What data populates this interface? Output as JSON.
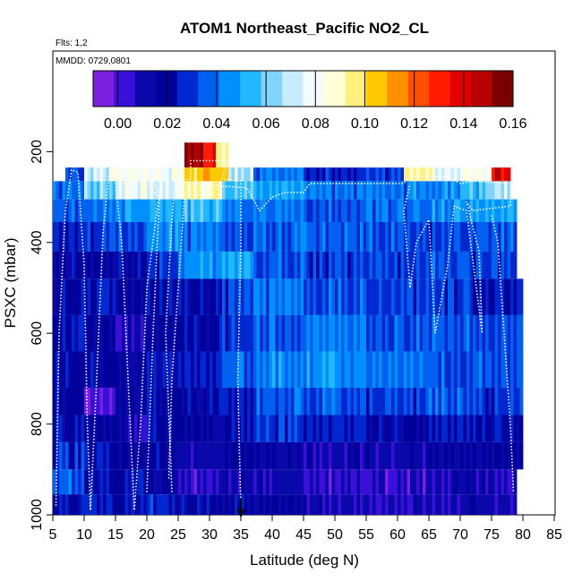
{
  "chart_data": {
    "type": "heatmap",
    "title": "ATOM1 Northeast_Pacific NO2_CL",
    "flights_label": "Flts: 1,2",
    "date_label": "MMDD: 0729,0801",
    "xlabel": "Latitude (deg N)",
    "ylabel": "PSXC (mbar)",
    "xlim": [
      5,
      85
    ],
    "ylim": [
      1000,
      0
    ],
    "x_ticks": [
      "5",
      "10",
      "15",
      "20",
      "25",
      "30",
      "35",
      "40",
      "45",
      "50",
      "55",
      "60",
      "65",
      "70",
      "75",
      "80",
      "85"
    ],
    "y_ticks": [
      "200",
      "400",
      "600",
      "800",
      "1000"
    ],
    "colorbar": {
      "range": [
        -0.01,
        0.16
      ],
      "ticks": [
        "0.00",
        "0.02",
        "0.04",
        "0.06",
        "0.08",
        "0.10",
        "0.12",
        "0.14",
        "0.16"
      ],
      "colors": [
        "#7b1fe0",
        "#3a0fd8",
        "#0a08a8",
        "#00009a",
        "#0028d0",
        "#0060f0",
        "#0090ff",
        "#22b8ff",
        "#80d4ff",
        "#c8ecff",
        "#f4fbff",
        "#ffffd8",
        "#fff080",
        "#ffc800",
        "#ff9000",
        "#ff5000",
        "#ff1c00",
        "#e00000",
        "#b80000",
        "#7a0000"
      ]
    },
    "marker": {
      "label": "arrow",
      "latitude": 35
    },
    "layers": [
      {
        "p": [
          180,
          235
        ],
        "values": [
          [
            26,
            29,
            0.15
          ],
          [
            29,
            31,
            0.13
          ],
          [
            31,
            33,
            0.09
          ]
        ]
      },
      {
        "p": [
          235,
          265
        ],
        "values": [
          [
            7,
            10,
            0.03
          ],
          [
            10,
            14,
            0.07
          ],
          [
            14,
            20,
            0.085
          ],
          [
            20,
            26,
            0.08
          ],
          [
            26,
            33,
            0.105
          ],
          [
            33,
            37,
            0.07
          ],
          [
            37,
            45,
            0.04
          ],
          [
            45,
            55,
            0.025
          ],
          [
            55,
            61,
            0.03
          ],
          [
            61,
            66,
            0.09
          ],
          [
            66,
            70,
            0.075
          ],
          [
            70,
            75,
            0.085
          ],
          [
            75,
            78,
            0.14
          ]
        ]
      },
      {
        "p": [
          265,
          305
        ],
        "values": [
          [
            5,
            10,
            0.04
          ],
          [
            10,
            15,
            0.06
          ],
          [
            15,
            20,
            0.08
          ],
          [
            20,
            25,
            0.075
          ],
          [
            25,
            32,
            0.09
          ],
          [
            32,
            37,
            0.055
          ],
          [
            37,
            45,
            0.05
          ],
          [
            45,
            55,
            0.04
          ],
          [
            55,
            62,
            0.04
          ],
          [
            62,
            70,
            0.045
          ],
          [
            70,
            75,
            0.055
          ],
          [
            75,
            78,
            0.07
          ]
        ]
      },
      {
        "p": [
          305,
          355
        ],
        "values": [
          [
            5,
            10,
            0.035
          ],
          [
            10,
            15,
            0.04
          ],
          [
            15,
            20,
            0.045
          ],
          [
            20,
            25,
            0.05
          ],
          [
            25,
            32,
            0.055
          ],
          [
            32,
            37,
            0.04
          ],
          [
            37,
            45,
            0.04
          ],
          [
            45,
            55,
            0.035
          ],
          [
            55,
            65,
            0.04
          ],
          [
            65,
            72,
            0.045
          ],
          [
            72,
            79,
            0.05
          ]
        ]
      },
      {
        "p": [
          355,
          420
        ],
        "values": [
          [
            5,
            10,
            0.025
          ],
          [
            10,
            15,
            0.03
          ],
          [
            15,
            20,
            0.035
          ],
          [
            20,
            25,
            0.045
          ],
          [
            25,
            32,
            0.04
          ],
          [
            32,
            37,
            0.035
          ],
          [
            37,
            45,
            0.035
          ],
          [
            45,
            55,
            0.035
          ],
          [
            55,
            65,
            0.035
          ],
          [
            65,
            72,
            0.03
          ],
          [
            72,
            79,
            0.035
          ]
        ]
      },
      {
        "p": [
          420,
          480
        ],
        "values": [
          [
            5,
            10,
            0.02
          ],
          [
            10,
            15,
            0.015
          ],
          [
            15,
            20,
            0.02
          ],
          [
            20,
            25,
            0.03
          ],
          [
            25,
            32,
            0.045
          ],
          [
            32,
            37,
            0.05
          ],
          [
            37,
            45,
            0.035
          ],
          [
            45,
            55,
            0.03
          ],
          [
            55,
            65,
            0.03
          ],
          [
            65,
            72,
            0.035
          ],
          [
            72,
            79,
            0.03
          ]
        ]
      },
      {
        "p": [
          480,
          560
        ],
        "values": [
          [
            5,
            10,
            0.02
          ],
          [
            10,
            15,
            0.025
          ],
          [
            15,
            20,
            0.015
          ],
          [
            20,
            25,
            0.02
          ],
          [
            25,
            32,
            0.02
          ],
          [
            32,
            37,
            0.03
          ],
          [
            37,
            45,
            0.04
          ],
          [
            45,
            55,
            0.035
          ],
          [
            55,
            65,
            0.03
          ],
          [
            65,
            72,
            0.03
          ],
          [
            72,
            80,
            0.025
          ]
        ]
      },
      {
        "p": [
          560,
          640
        ],
        "values": [
          [
            5,
            10,
            0.02
          ],
          [
            10,
            15,
            0.015
          ],
          [
            15,
            20,
            0.01
          ],
          [
            20,
            25,
            0.015
          ],
          [
            25,
            32,
            0.02
          ],
          [
            32,
            37,
            0.03
          ],
          [
            37,
            45,
            0.035
          ],
          [
            45,
            55,
            0.04
          ],
          [
            55,
            65,
            0.035
          ],
          [
            65,
            72,
            0.035
          ],
          [
            72,
            80,
            0.03
          ]
        ]
      },
      {
        "p": [
          640,
          720
        ],
        "values": [
          [
            5,
            10,
            0.02
          ],
          [
            10,
            15,
            0.02
          ],
          [
            15,
            20,
            0.015
          ],
          [
            20,
            25,
            0.02
          ],
          [
            25,
            32,
            0.025
          ],
          [
            32,
            37,
            0.035
          ],
          [
            37,
            45,
            0.045
          ],
          [
            45,
            55,
            0.045
          ],
          [
            55,
            65,
            0.04
          ],
          [
            65,
            72,
            0.035
          ],
          [
            72,
            80,
            0.035
          ]
        ]
      },
      {
        "p": [
          720,
          780
        ],
        "values": [
          [
            5,
            10,
            0.02
          ],
          [
            10,
            15,
            0.0
          ],
          [
            15,
            20,
            0.015
          ],
          [
            20,
            25,
            0.02
          ],
          [
            25,
            32,
            0.02
          ],
          [
            32,
            37,
            0.025
          ],
          [
            37,
            45,
            0.035
          ],
          [
            45,
            55,
            0.035
          ],
          [
            55,
            65,
            0.03
          ],
          [
            65,
            72,
            0.035
          ],
          [
            72,
            80,
            0.03
          ]
        ]
      },
      {
        "p": [
          780,
          840
        ],
        "values": [
          [
            5,
            10,
            0.02
          ],
          [
            10,
            15,
            0.015
          ],
          [
            15,
            20,
            0.01
          ],
          [
            20,
            25,
            0.02
          ],
          [
            25,
            32,
            0.015
          ],
          [
            32,
            37,
            0.02
          ],
          [
            37,
            45,
            0.03
          ],
          [
            45,
            55,
            0.025
          ],
          [
            55,
            65,
            0.02
          ],
          [
            65,
            72,
            0.025
          ],
          [
            72,
            80,
            0.02
          ]
        ]
      },
      {
        "p": [
          840,
          900
        ],
        "values": [
          [
            5,
            10,
            0.03
          ],
          [
            10,
            15,
            0.02
          ],
          [
            15,
            20,
            0.015
          ],
          [
            20,
            25,
            0.02
          ],
          [
            25,
            32,
            0.01
          ],
          [
            32,
            37,
            0.015
          ],
          [
            37,
            45,
            0.015
          ],
          [
            45,
            55,
            0.01
          ],
          [
            55,
            65,
            0.01
          ],
          [
            65,
            72,
            0.015
          ],
          [
            72,
            80,
            0.015
          ]
        ]
      },
      {
        "p": [
          900,
          955
        ],
        "values": [
          [
            5,
            10,
            0.035
          ],
          [
            10,
            15,
            0.02
          ],
          [
            15,
            20,
            0.02
          ],
          [
            20,
            25,
            0.015
          ],
          [
            25,
            32,
            0.005
          ],
          [
            32,
            37,
            0.01
          ],
          [
            37,
            45,
            0.01
          ],
          [
            45,
            55,
            0.005
          ],
          [
            55,
            65,
            0.005
          ],
          [
            65,
            72,
            0.01
          ],
          [
            72,
            79,
            0.01
          ]
        ]
      },
      {
        "p": [
          955,
          1000
        ],
        "values": [
          [
            5,
            10,
            0.02
          ],
          [
            10,
            15,
            0.025
          ],
          [
            15,
            20,
            0.02
          ],
          [
            20,
            25,
            0.025
          ],
          [
            25,
            32,
            0.02
          ],
          [
            32,
            37,
            0.02
          ],
          [
            37,
            45,
            0.015
          ],
          [
            45,
            55,
            0.01
          ],
          [
            55,
            65,
            0.01
          ],
          [
            65,
            72,
            0.01
          ],
          [
            72,
            79,
            0.01
          ]
        ]
      }
    ],
    "flight_tracks": [
      [
        [
          5.5,
          980
        ],
        [
          6,
          600
        ],
        [
          7,
          330
        ],
        [
          8,
          240
        ],
        [
          9,
          245
        ],
        [
          10,
          450
        ],
        [
          10.5,
          800
        ],
        [
          11,
          990
        ],
        [
          12,
          700
        ],
        [
          13,
          380
        ],
        [
          14,
          240
        ],
        [
          20,
          245
        ],
        [
          22,
          290
        ],
        [
          20,
          500
        ],
        [
          19,
          800
        ],
        [
          18,
          990
        ],
        [
          17,
          700
        ],
        [
          16,
          400
        ],
        [
          15,
          270
        ],
        [
          20,
          270
        ],
        [
          22,
          300
        ],
        [
          21,
          600
        ],
        [
          20,
          950
        ]
      ],
      [
        [
          24,
          950
        ],
        [
          23,
          600
        ],
        [
          24,
          350
        ],
        [
          24.5,
          265
        ],
        [
          27,
          260
        ],
        [
          27,
          220
        ],
        [
          33,
          220
        ],
        [
          32,
          260
        ],
        [
          35,
          265
        ],
        [
          35,
          420
        ],
        [
          34.5,
          700
        ],
        [
          35,
          990
        ]
      ],
      [
        [
          23.5,
          920
        ],
        [
          24,
          700
        ],
        [
          25,
          500
        ],
        [
          26,
          300
        ],
        [
          27,
          270
        ],
        [
          36,
          280
        ],
        [
          38,
          330
        ],
        [
          40,
          300
        ],
        [
          42,
          290
        ],
        [
          45,
          290
        ],
        [
          46,
          270
        ],
        [
          54,
          270
        ],
        [
          55,
          270
        ],
        [
          61,
          270
        ],
        [
          62,
          255
        ],
        [
          68,
          255
        ],
        [
          70,
          270
        ],
        [
          72,
          265
        ],
        [
          78,
          270
        ],
        [
          78,
          320
        ],
        [
          72,
          330
        ],
        [
          71,
          310
        ],
        [
          73,
          420
        ],
        [
          73.5,
          600
        ],
        [
          71,
          330
        ],
        [
          69,
          320
        ],
        [
          68,
          450
        ],
        [
          66,
          600
        ],
        [
          65,
          350
        ],
        [
          63,
          400
        ],
        [
          62,
          500
        ],
        [
          61,
          330
        ],
        [
          62,
          270
        ]
      ],
      [
        [
          75,
          340
        ],
        [
          76,
          400
        ],
        [
          77,
          600
        ],
        [
          78,
          800
        ],
        [
          78.5,
          950
        ]
      ]
    ]
  }
}
